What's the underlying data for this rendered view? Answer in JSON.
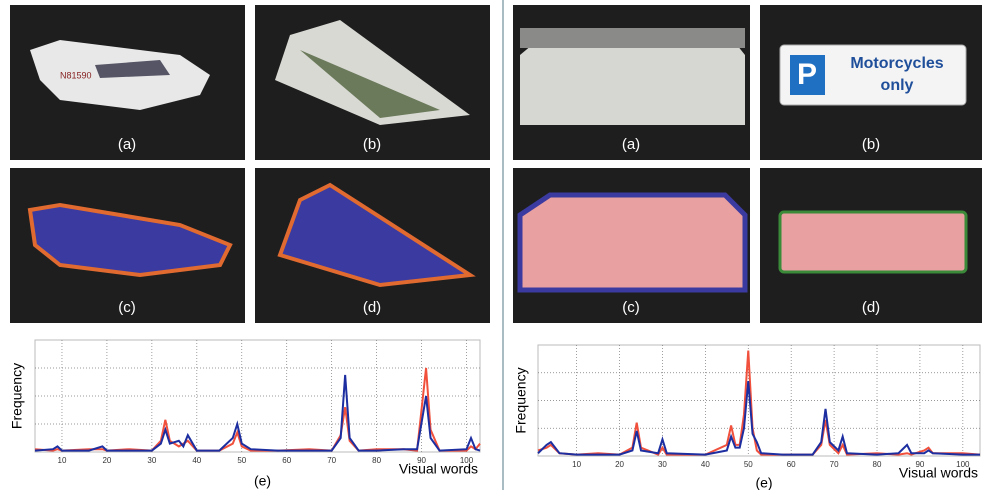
{
  "panels": {
    "left": [
      "(a)",
      "(b)",
      "(c)",
      "(d)"
    ],
    "right": [
      "(a)",
      "(b)",
      "(c)",
      "(d)"
    ],
    "plane_registration": "N81590",
    "sign": {
      "letter": "P",
      "lines": [
        "Motorcycles",
        "only"
      ]
    }
  },
  "chart_data": [
    {
      "type": "line",
      "ylabel": "Frequency",
      "xlabel": "Visual words",
      "caption": "(e)",
      "grid": true,
      "xlim": [
        4,
        103
      ],
      "ylim": [
        0,
        4
      ],
      "xticks": [
        10,
        20,
        30,
        40,
        50,
        60,
        70,
        80,
        90,
        100
      ],
      "x": [
        4,
        8,
        9,
        10,
        16,
        19,
        20,
        25,
        30,
        32,
        33,
        34,
        36,
        37,
        38,
        40,
        45,
        48,
        49,
        50,
        52,
        58,
        65,
        70,
        72,
        73,
        74,
        76,
        80,
        86,
        89,
        91,
        92,
        94,
        100,
        101,
        102,
        103
      ],
      "series": [
        {
          "color": "#f0503c",
          "values": [
            0.1,
            0.05,
            0.1,
            0.05,
            0.1,
            0.1,
            0.05,
            0.1,
            0.05,
            0.4,
            1.15,
            0.4,
            0.2,
            0.3,
            0.4,
            0.05,
            0.05,
            0.3,
            0.7,
            0.2,
            0.05,
            0.05,
            0.1,
            0.05,
            0.6,
            1.6,
            0.4,
            0.05,
            0.1,
            0.1,
            0.05,
            3.0,
            0.8,
            0.05,
            0.05,
            0.2,
            0.1,
            0.3
          ]
        },
        {
          "color": "#1c2ea0",
          "values": [
            0.05,
            0.1,
            0.2,
            0.05,
            0.05,
            0.2,
            0.05,
            0.05,
            0.05,
            0.3,
            0.8,
            0.3,
            0.4,
            0.2,
            0.6,
            0.05,
            0.05,
            0.5,
            1.0,
            0.3,
            0.1,
            0.05,
            0.05,
            0.05,
            0.5,
            2.75,
            0.5,
            0.05,
            0.05,
            0.1,
            0.1,
            2.0,
            0.5,
            0.05,
            0.1,
            0.5,
            0.1,
            0.05
          ]
        }
      ]
    },
    {
      "type": "line",
      "ylabel": "Frequency",
      "xlabel": "Visual words",
      "caption": "(e)",
      "grid": true,
      "xlim": [
        1,
        104
      ],
      "ylim": [
        0,
        4
      ],
      "xticks": [
        10,
        20,
        30,
        40,
        50,
        60,
        70,
        80,
        90,
        100
      ],
      "x": [
        1,
        3,
        4,
        6,
        10,
        15,
        20,
        23,
        24,
        25,
        29,
        30,
        31,
        40,
        45,
        46,
        47,
        48,
        49,
        50,
        51,
        52,
        53,
        58,
        65,
        67,
        68,
        69,
        71,
        72,
        73,
        80,
        85,
        87,
        88,
        91,
        92,
        93,
        100,
        104
      ],
      "series": [
        {
          "color": "#f0503c",
          "values": [
            0.2,
            0.3,
            0.4,
            0.1,
            0.05,
            0.1,
            0.05,
            0.3,
            1.2,
            0.3,
            0.05,
            0.3,
            0.05,
            0.05,
            0.4,
            1.1,
            0.4,
            0.4,
            1.5,
            3.8,
            1.0,
            0.2,
            0.05,
            0.05,
            0.05,
            0.4,
            1.3,
            0.4,
            0.1,
            0.4,
            0.05,
            0.1,
            0.05,
            0.1,
            0.05,
            0.2,
            0.3,
            0.1,
            0.1,
            0.05
          ]
        },
        {
          "color": "#1c2ea0",
          "values": [
            0.1,
            0.4,
            0.5,
            0.1,
            0.05,
            0.05,
            0.05,
            0.2,
            0.9,
            0.2,
            0.1,
            0.6,
            0.1,
            0.05,
            0.2,
            0.7,
            0.3,
            0.3,
            1.0,
            2.7,
            0.8,
            0.5,
            0.1,
            0.05,
            0.05,
            0.5,
            1.7,
            0.5,
            0.2,
            0.7,
            0.1,
            0.05,
            0.1,
            0.4,
            0.1,
            0.1,
            0.2,
            0.1,
            0.05,
            0.05
          ]
        }
      ]
    }
  ]
}
